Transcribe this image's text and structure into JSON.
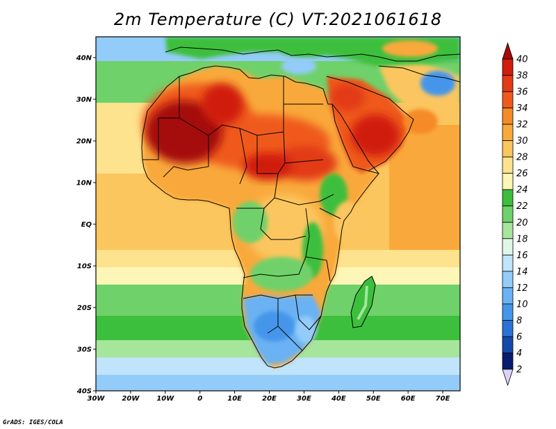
{
  "title": "2m Temperature (C) VT:2021061618",
  "credit": "GrADS: IGES/COLA",
  "map": {
    "lon_range": [
      -30,
      75
    ],
    "lat_range": [
      -40,
      45
    ],
    "lat_ticks": [
      {
        "v": 40,
        "label": "40N"
      },
      {
        "v": 30,
        "label": "30N"
      },
      {
        "v": 20,
        "label": "20N"
      },
      {
        "v": 10,
        "label": "10N"
      },
      {
        "v": 0,
        "label": "EQ"
      },
      {
        "v": -10,
        "label": "10S"
      },
      {
        "v": -20,
        "label": "20S"
      },
      {
        "v": -30,
        "label": "30S"
      },
      {
        "v": -40,
        "label": "40S"
      }
    ],
    "lon_ticks": [
      {
        "v": -30,
        "label": "30W"
      },
      {
        "v": -20,
        "label": "20W"
      },
      {
        "v": -10,
        "label": "10W"
      },
      {
        "v": 0,
        "label": "0"
      },
      {
        "v": 10,
        "label": "10E"
      },
      {
        "v": 20,
        "label": "20E"
      },
      {
        "v": 30,
        "label": "30E"
      },
      {
        "v": 40,
        "label": "40E"
      },
      {
        "v": 50,
        "label": "50E"
      },
      {
        "v": 60,
        "label": "60E"
      },
      {
        "v": 70,
        "label": "70E"
      }
    ]
  },
  "colorbar": {
    "labels": [
      "40",
      "38",
      "36",
      "34",
      "32",
      "30",
      "28",
      "26",
      "24",
      "22",
      "20",
      "18",
      "16",
      "14",
      "12",
      "10",
      "8",
      "6",
      "4",
      "2"
    ],
    "colors": [
      "#a50a0a",
      "#d01d0e",
      "#e23b16",
      "#ef5a1c",
      "#f58a26",
      "#f9a93b",
      "#fbc65e",
      "#fde38e",
      "#fdf6b6",
      "#3cbf3c",
      "#6fd16a",
      "#a6e59c",
      "#dff7e9",
      "#bfe4fb",
      "#93ccf8",
      "#6ab2f3",
      "#4496ea",
      "#2a73d6",
      "#1249ad",
      "#0a1a6e",
      "#dcd2f6"
    ]
  }
}
